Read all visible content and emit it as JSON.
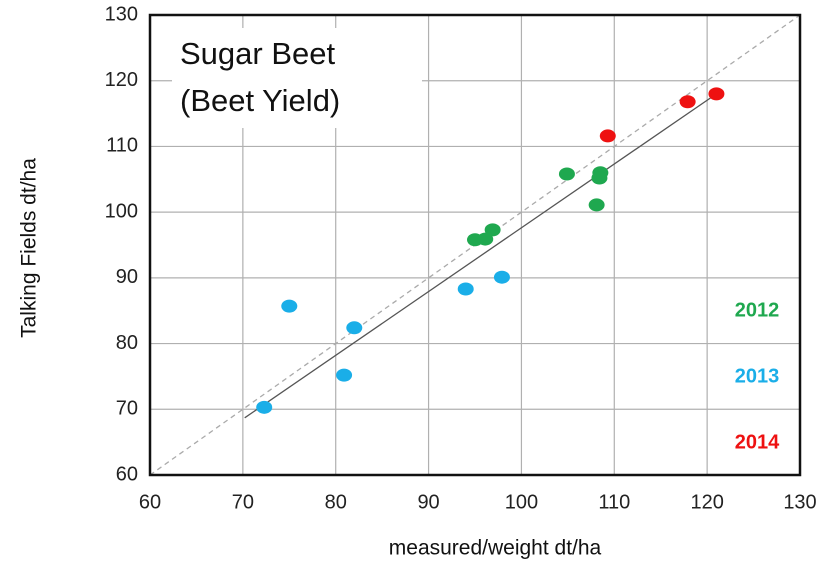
{
  "chart_data": {
    "type": "scatter",
    "title": [
      "Sugar Beet",
      "(Beet Yield)"
    ],
    "x_label": "measured/weight  dt/ha",
    "y_label": "Talking Fields  dt/ha",
    "xlim": [
      60,
      130
    ],
    "ylim": [
      60,
      130
    ],
    "xticks": [
      60,
      70,
      80,
      90,
      100,
      110,
      120,
      130
    ],
    "yticks": [
      60,
      70,
      80,
      90,
      100,
      110,
      120,
      130
    ],
    "grid": true,
    "legend": "lower right",
    "series": [
      {
        "name": "2012",
        "color": "#1fa84f",
        "x": [
          95.0,
          96.1,
          96.9,
          104.9,
          108.5,
          108.4,
          108.1
        ],
        "values": [
          95.8,
          95.9,
          97.3,
          105.8,
          106.0,
          105.2,
          101.1
        ]
      },
      {
        "name": "2013",
        "color": "#1aaee8",
        "x": [
          72.3,
          75.0,
          80.9,
          82.0,
          94.0,
          97.9
        ],
        "values": [
          70.3,
          85.7,
          75.2,
          82.4,
          88.3,
          90.1
        ]
      },
      {
        "name": "2014",
        "color": "#ee1111",
        "x": [
          109.3,
          117.9,
          121.0
        ],
        "values": [
          111.6,
          116.8,
          118.0
        ]
      }
    ],
    "reference_line": {
      "x": [
        60,
        130
      ],
      "values": [
        60,
        130
      ]
    },
    "trend_line": {
      "x": [
        70.2,
        121.0
      ],
      "values": [
        68.7,
        118.0
      ]
    }
  }
}
